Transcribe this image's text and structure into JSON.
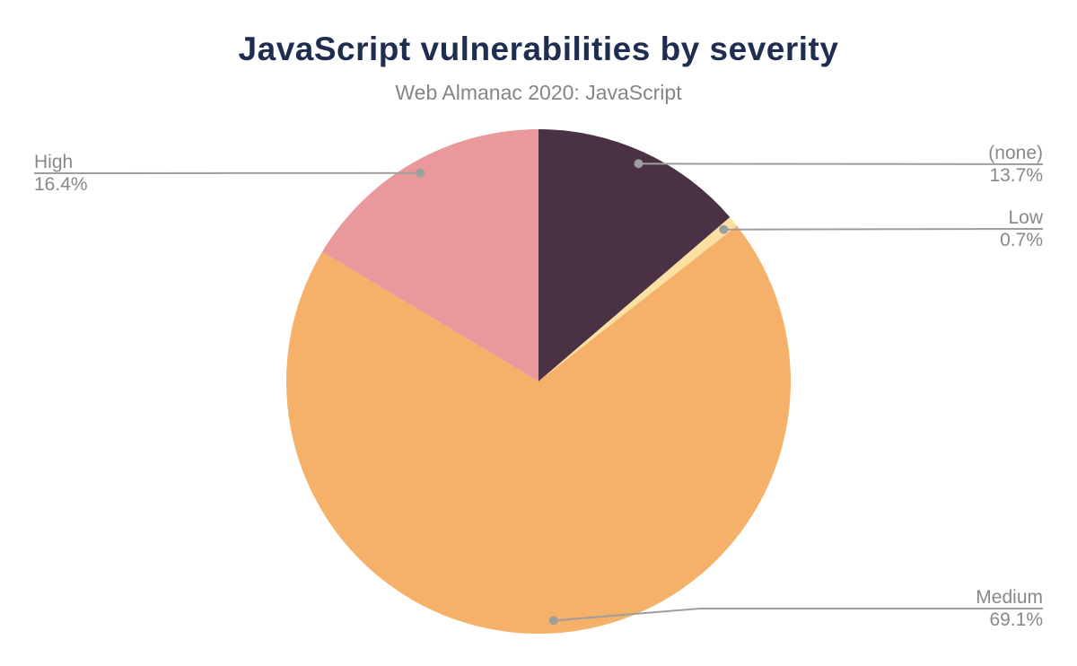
{
  "chart_data": {
    "type": "pie",
    "title": "JavaScript vulnerabilities by severity",
    "subtitle": "Web Almanac 2020: JavaScript",
    "start_angle_deg": 0,
    "direction": "clockwise",
    "legend_position": "none",
    "labels_style": "external-callouts-with-leader-lines",
    "slices": [
      {
        "label": "(none)",
        "value": 13.7,
        "pct": "13.7%",
        "color": "#4a3144",
        "label_side": "right"
      },
      {
        "label": "Low",
        "value": 0.7,
        "pct": "0.7%",
        "color": "#fbe0a1",
        "label_side": "right"
      },
      {
        "label": "Medium",
        "value": 69.1,
        "pct": "69.1%",
        "color": "#f5b16a",
        "label_side": "right"
      },
      {
        "label": "High",
        "value": 16.4,
        "pct": "16.4%",
        "color": "#e9999b",
        "label_side": "left"
      }
    ],
    "colors": {
      "title_text": "#1e2d50",
      "subtitle_text": "#858585",
      "callout_text": "#888888",
      "leader_line": "#9e9e9e",
      "background": "#ffffff"
    }
  }
}
